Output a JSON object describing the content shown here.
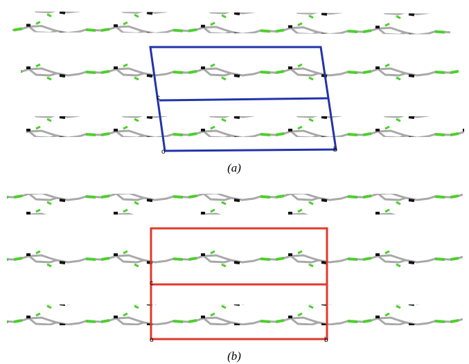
{
  "figure": {
    "panels": [
      {
        "label": "(a)",
        "cell_labels": [
          "c",
          "o",
          "b"
        ]
      },
      {
        "label": "(b)",
        "cell_labels": [
          "c",
          "o",
          "b"
        ]
      }
    ]
  }
}
